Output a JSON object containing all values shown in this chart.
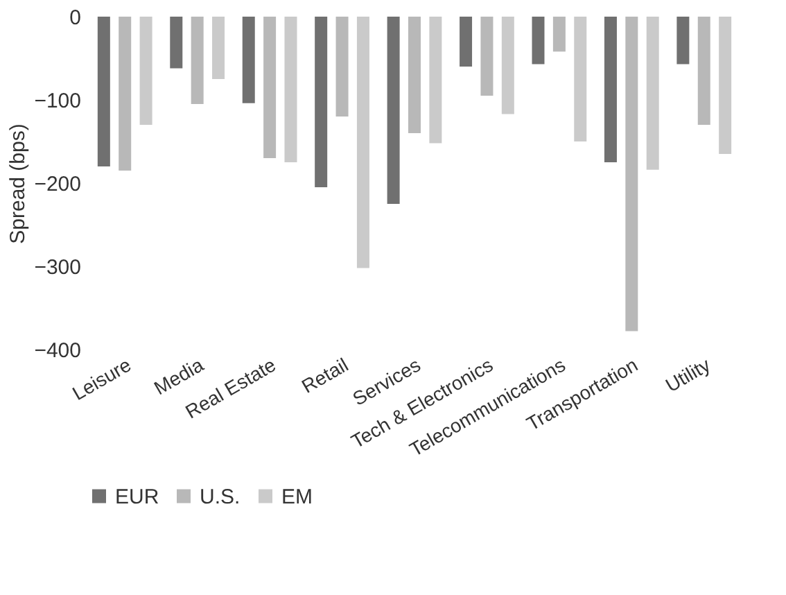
{
  "chart_data": {
    "type": "bar",
    "ylabel": "Spread (bps)",
    "categories": [
      "Leisure",
      "Media",
      "Real Estate",
      "Retail",
      "Services",
      "Tech & Electronics",
      "Telecommunications",
      "Transportation",
      "Utility"
    ],
    "series": [
      {
        "name": "EUR",
        "color": "#707070",
        "values": [
          -180,
          -62,
          -104,
          -205,
          -225,
          -60,
          -57,
          -175,
          -57
        ]
      },
      {
        "name": "U.S.",
        "color": "#b8b8b8",
        "values": [
          -185,
          -105,
          -170,
          -120,
          -140,
          -95,
          -42,
          -378,
          -130
        ]
      },
      {
        "name": "EM",
        "color": "#cacaca",
        "values": [
          -130,
          -75,
          -175,
          -302,
          -152,
          -117,
          -150,
          -184,
          -165
        ]
      }
    ],
    "ylim": [
      -400,
      0
    ],
    "yticks": [
      -400,
      -300,
      -200,
      -100,
      0
    ],
    "grid": false,
    "legend": "bottom"
  }
}
